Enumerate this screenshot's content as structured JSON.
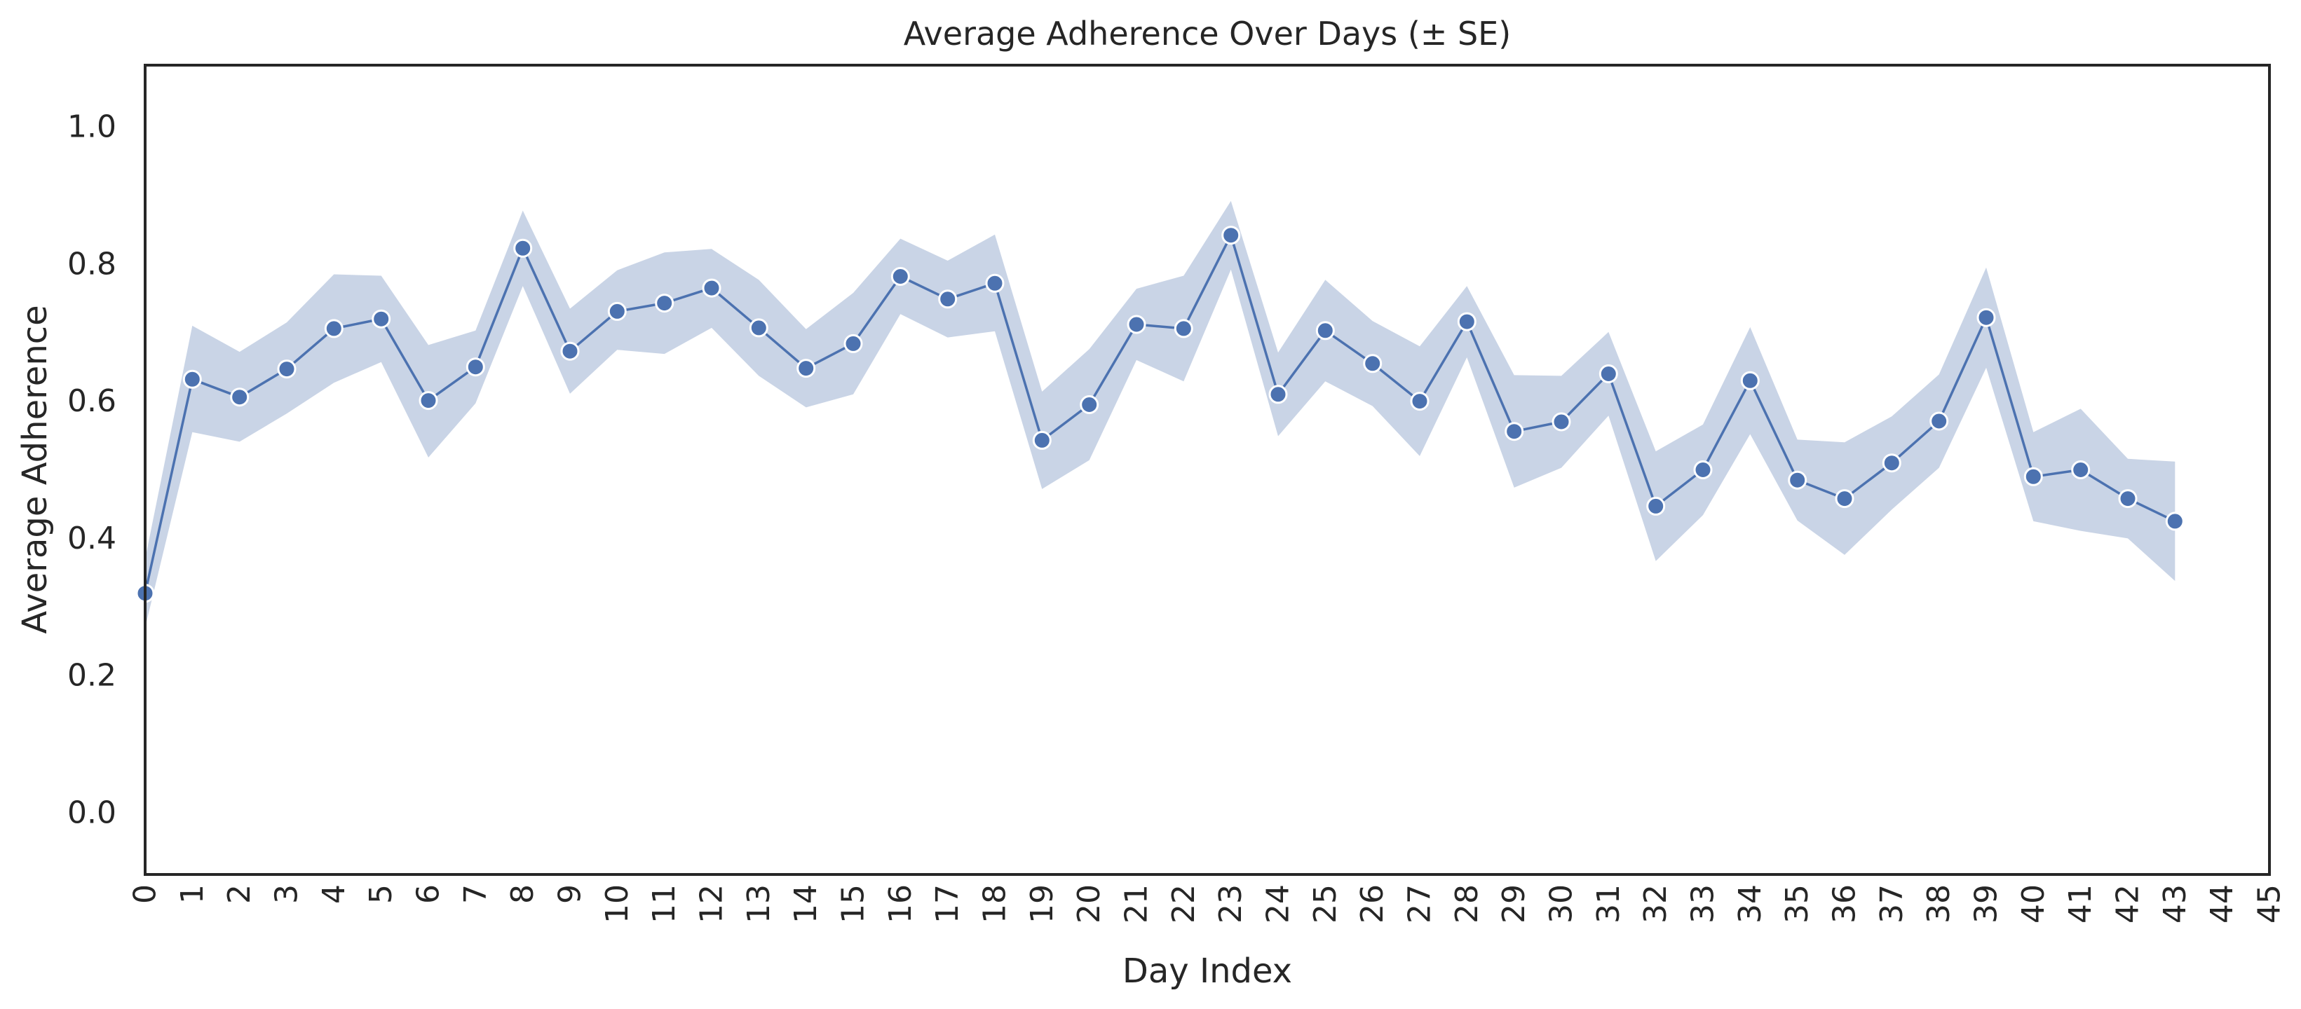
{
  "chart_data": {
    "type": "line",
    "title": "Average Adherence Over Days (± SE)",
    "xlabel": "Day Index",
    "ylabel": "Average Adherence",
    "xlim": [
      0,
      45
    ],
    "ylim": [
      -0.09,
      1.09
    ],
    "x_ticks": [
      0,
      1,
      2,
      3,
      4,
      5,
      6,
      7,
      8,
      9,
      10,
      11,
      12,
      13,
      14,
      15,
      16,
      17,
      18,
      19,
      20,
      21,
      22,
      23,
      24,
      25,
      26,
      27,
      28,
      29,
      30,
      31,
      32,
      33,
      34,
      35,
      36,
      37,
      38,
      39,
      40,
      41,
      42,
      43,
      44,
      45
    ],
    "x_tick_labels": [
      "0",
      "1",
      "2",
      "3",
      "4",
      "5",
      "6",
      "7",
      "8",
      "9",
      "10",
      "11",
      "12",
      "13",
      "14",
      "15",
      "16",
      "17",
      "18",
      "19",
      "20",
      "21",
      "22",
      "23",
      "24",
      "25",
      "26",
      "27",
      "28",
      "29",
      "30",
      "31",
      "32",
      "33",
      "34",
      "35",
      "36",
      "37",
      "38",
      "39",
      "40",
      "41",
      "42",
      "43",
      "44",
      "45"
    ],
    "y_ticks": [
      0.0,
      0.2,
      0.4,
      0.6,
      0.8,
      1.0
    ],
    "y_tick_labels": [
      "0.0",
      "0.2",
      "0.4",
      "0.6",
      "0.8",
      "1.0"
    ],
    "grid": false,
    "legend": "none",
    "series": [
      {
        "x": [
          0,
          1,
          2,
          3,
          4,
          5,
          6,
          7,
          8,
          9,
          10,
          11,
          12,
          13,
          14,
          15,
          16,
          17,
          18,
          19,
          20,
          21,
          22,
          23,
          24,
          25,
          26,
          27,
          28,
          29,
          30,
          31,
          32,
          33,
          34,
          35,
          36,
          37,
          38,
          39,
          40,
          41,
          42,
          43
        ],
        "y": [
          0.32,
          0.632,
          0.606,
          0.647,
          0.706,
          0.72,
          0.601,
          0.65,
          0.823,
          0.673,
          0.731,
          0.743,
          0.765,
          0.707,
          0.648,
          0.684,
          0.782,
          0.749,
          0.772,
          0.543,
          0.595,
          0.712,
          0.706,
          0.842,
          0.61,
          0.703,
          0.655,
          0.6,
          0.716,
          0.556,
          0.57,
          0.64,
          0.447,
          0.5,
          0.63,
          0.485,
          0.458,
          0.51,
          0.571,
          0.722,
          0.49,
          0.5,
          0.458,
          0.425
        ],
        "y_upper": [
          0.37,
          0.71,
          0.672,
          0.715,
          0.785,
          0.783,
          0.682,
          0.703,
          0.878,
          0.735,
          0.791,
          0.817,
          0.822,
          0.777,
          0.705,
          0.758,
          0.837,
          0.805,
          0.843,
          0.614,
          0.676,
          0.764,
          0.783,
          0.892,
          0.671,
          0.777,
          0.717,
          0.68,
          0.768,
          0.638,
          0.637,
          0.701,
          0.527,
          0.566,
          0.708,
          0.544,
          0.54,
          0.578,
          0.639,
          0.795,
          0.555,
          0.589,
          0.516,
          0.512
        ],
        "y_lower": [
          0.27,
          0.555,
          0.541,
          0.582,
          0.627,
          0.657,
          0.518,
          0.597,
          0.768,
          0.611,
          0.675,
          0.669,
          0.707,
          0.637,
          0.591,
          0.61,
          0.727,
          0.693,
          0.702,
          0.472,
          0.514,
          0.66,
          0.629,
          0.792,
          0.549,
          0.629,
          0.593,
          0.52,
          0.664,
          0.474,
          0.503,
          0.579,
          0.367,
          0.434,
          0.552,
          0.426,
          0.376,
          0.442,
          0.503,
          0.649,
          0.425,
          0.411,
          0.4,
          0.338
        ]
      }
    ],
    "colors": {
      "line": "#4c72b0",
      "marker_fill": "#4c72b0",
      "marker_edge": "#ffffff",
      "band": "#c9d4e6",
      "axes_edge": "#262626",
      "text": "#262626"
    }
  }
}
